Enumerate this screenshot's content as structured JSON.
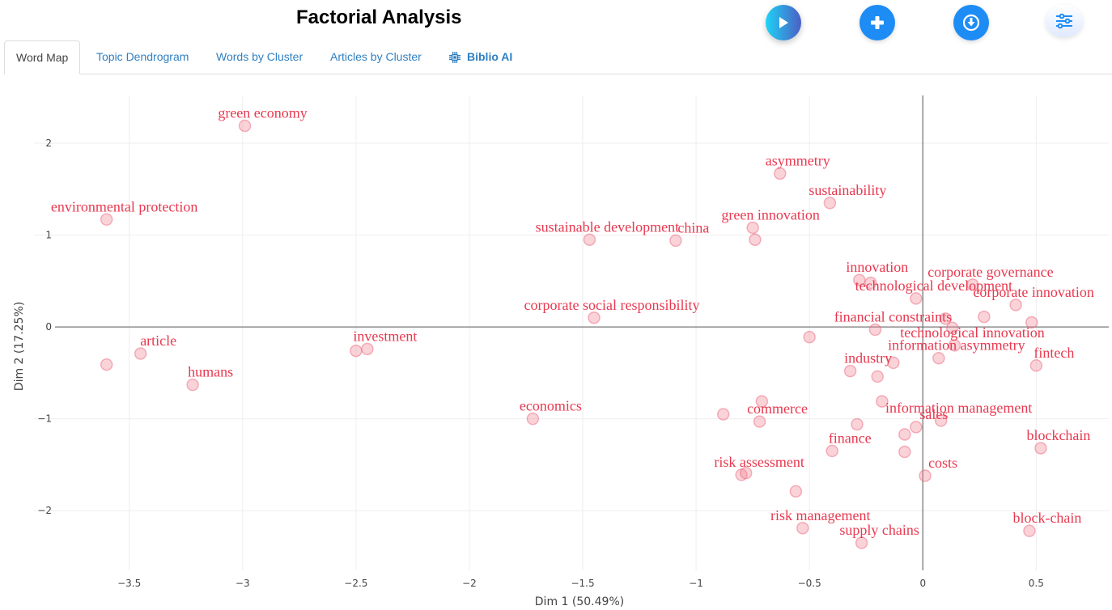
{
  "header": {
    "title": "Factorial Analysis",
    "buttons": [
      {
        "name": "run-button",
        "icon": "play-icon"
      },
      {
        "name": "add-button",
        "icon": "plus-icon"
      },
      {
        "name": "download-button",
        "icon": "download-icon"
      },
      {
        "name": "options-button",
        "icon": "sliders-icon"
      }
    ]
  },
  "tabs": [
    {
      "label": "Word Map",
      "active": true
    },
    {
      "label": "Topic Dendrogram",
      "active": false
    },
    {
      "label": "Words by Cluster",
      "active": false
    },
    {
      "label": "Articles by Cluster",
      "active": false
    },
    {
      "label": "Biblio AI",
      "active": false,
      "icon": "chip-icon"
    }
  ],
  "colors": {
    "label": "#e8384f",
    "point_fill": "#f5a3b0",
    "tab_link": "#2f7fc1",
    "fab_blue": "#1e8cf5"
  },
  "chart_data": {
    "type": "scatter",
    "title": "",
    "xlabel": "Dim 1 (50.49%)",
    "ylabel": "Dim 2 (17.25%)",
    "xlim": [
      -3.92,
      0.82
    ],
    "ylim": [
      -2.65,
      2.52
    ],
    "xticks": [
      -3.5,
      -3,
      -2.5,
      -2,
      -1.5,
      -1,
      -0.5,
      0,
      0.5
    ],
    "xtick_labels": [
      "−3.5",
      "−3",
      "−2.5",
      "−2",
      "−1.5",
      "−1",
      "−0.5",
      "0",
      "0.5"
    ],
    "yticks": [
      -2,
      -1,
      0,
      1,
      2
    ],
    "ytick_labels": [
      "−2",
      "−1",
      "0",
      "1",
      "2"
    ],
    "grid": true,
    "zero_lines": true,
    "legend": "none",
    "points": [
      {
        "label": "green economy",
        "x": -2.99,
        "y": 2.19
      },
      {
        "label": "environmental protection",
        "x": -3.6,
        "y": 1.17
      },
      {
        "label": "asymmetry",
        "x": -0.63,
        "y": 1.67
      },
      {
        "label": "sustainability",
        "x": -0.41,
        "y": 1.35
      },
      {
        "label": "green innovation",
        "x": -0.75,
        "y": 1.08
      },
      {
        "label": "",
        "x": -0.74,
        "y": 0.95
      },
      {
        "label": "sustainable development",
        "x": -1.47,
        "y": 0.95
      },
      {
        "label": "china",
        "x": -1.09,
        "y": 0.94
      },
      {
        "label": "innovation",
        "x": -0.28,
        "y": 0.51
      },
      {
        "label": "",
        "x": -0.23,
        "y": 0.48
      },
      {
        "label": "technological development",
        "x": -0.03,
        "y": 0.31
      },
      {
        "label": "corporate governance",
        "x": 0.22,
        "y": 0.46
      },
      {
        "label": "corporate innovation",
        "x": 0.41,
        "y": 0.24
      },
      {
        "label": "",
        "x": 0.1,
        "y": 0.09
      },
      {
        "label": "",
        "x": 0.27,
        "y": 0.11
      },
      {
        "label": "",
        "x": 0.48,
        "y": 0.05
      },
      {
        "label": "",
        "x": 0.13,
        "y": -0.01
      },
      {
        "label": "financial constraints",
        "x": -0.21,
        "y": -0.03
      },
      {
        "label": "",
        "x": -0.5,
        "y": -0.11
      },
      {
        "label": "corporate social responsibility",
        "x": -1.45,
        "y": 0.1
      },
      {
        "label": "",
        "x": -2.5,
        "y": -0.26
      },
      {
        "label": "investment",
        "x": -2.45,
        "y": -0.24
      },
      {
        "label": "",
        "x": -3.6,
        "y": -0.41
      },
      {
        "label": "article",
        "x": -3.45,
        "y": -0.29
      },
      {
        "label": "humans",
        "x": -3.22,
        "y": -0.63
      },
      {
        "label": "technological innovation",
        "x": 0.14,
        "y": -0.2
      },
      {
        "label": "information asymmetry",
        "x": 0.07,
        "y": -0.34
      },
      {
        "label": "",
        "x": -0.13,
        "y": -0.39
      },
      {
        "label": "industry",
        "x": -0.32,
        "y": -0.48
      },
      {
        "label": "",
        "x": -0.2,
        "y": -0.54
      },
      {
        "label": "fintech",
        "x": 0.5,
        "y": -0.42
      },
      {
        "label": "economics",
        "x": -1.72,
        "y": -1.0
      },
      {
        "label": "",
        "x": -0.71,
        "y": -0.81
      },
      {
        "label": "commerce",
        "x": -0.72,
        "y": -1.03
      },
      {
        "label": "",
        "x": -0.88,
        "y": -0.95
      },
      {
        "label": "",
        "x": -0.18,
        "y": -0.81
      },
      {
        "label": "information management",
        "x": 0.08,
        "y": -1.02
      },
      {
        "label": "sales",
        "x": -0.03,
        "y": -1.09
      },
      {
        "label": "",
        "x": -0.08,
        "y": -1.17
      },
      {
        "label": "",
        "x": -0.29,
        "y": -1.06
      },
      {
        "label": "finance",
        "x": -0.4,
        "y": -1.35
      },
      {
        "label": "",
        "x": -0.08,
        "y": -1.36
      },
      {
        "label": "blockchain",
        "x": 0.52,
        "y": -1.32
      },
      {
        "label": "costs",
        "x": 0.01,
        "y": -1.62
      },
      {
        "label": "risk assessment",
        "x": -0.8,
        "y": -1.61
      },
      {
        "label": "",
        "x": -0.78,
        "y": -1.59
      },
      {
        "label": "",
        "x": -0.56,
        "y": -1.79
      },
      {
        "label": "risk management",
        "x": -0.53,
        "y": -2.19
      },
      {
        "label": "supply chains",
        "x": -0.27,
        "y": -2.35
      },
      {
        "label": "block-chain",
        "x": 0.47,
        "y": -2.22
      }
    ]
  }
}
